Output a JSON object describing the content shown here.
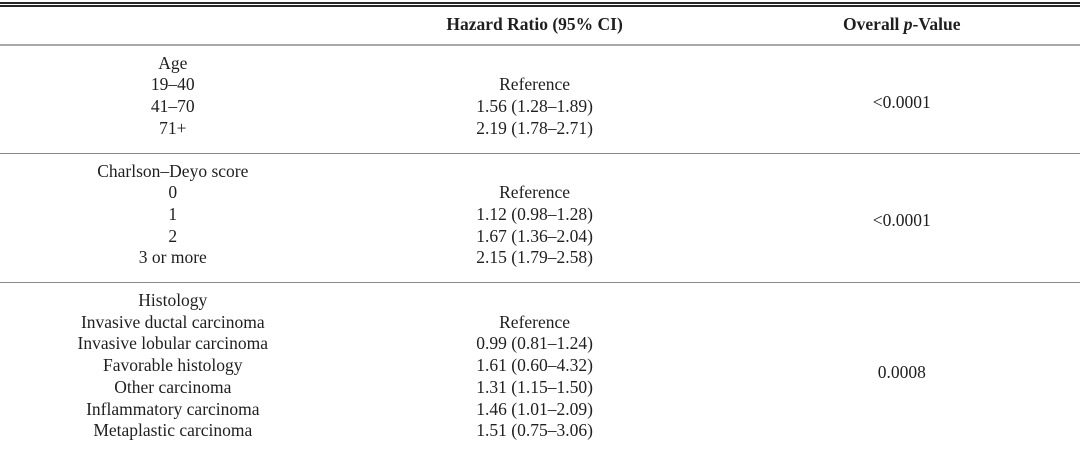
{
  "page": {
    "background": "#ffffff",
    "text_color": "#1f1f1f",
    "rule_heavy_color": "#262626",
    "rule_light_color": "#a9a9a9"
  },
  "table": {
    "header": {
      "col1": "",
      "col2": "Hazard Ratio (95% CI)",
      "col3_prefix": "Overall ",
      "col3_italic": "p",
      "col3_suffix": "-Value"
    },
    "sections": [
      {
        "label": "Age",
        "p_value": "<0.0001",
        "rows": [
          {
            "category": "19–40",
            "hazard_ratio": "Reference"
          },
          {
            "category": "41–70",
            "hazard_ratio": "1.56 (1.28–1.89)"
          },
          {
            "category": "71+",
            "hazard_ratio": "2.19 (1.78–2.71)"
          }
        ]
      },
      {
        "label": "Charlson–Deyo score",
        "p_value": "<0.0001",
        "rows": [
          {
            "category": "0",
            "hazard_ratio": "Reference"
          },
          {
            "category": "1",
            "hazard_ratio": "1.12 (0.98–1.28)"
          },
          {
            "category": "2",
            "hazard_ratio": "1.67 (1.36–2.04)"
          },
          {
            "category": "3 or more",
            "hazard_ratio": "2.15 (1.79–2.58)"
          }
        ]
      },
      {
        "label": "Histology",
        "p_value": "0.0008",
        "rows": [
          {
            "category": "Invasive ductal carcinoma",
            "hazard_ratio": "Reference"
          },
          {
            "category": "Invasive lobular carcinoma",
            "hazard_ratio": "0.99 (0.81–1.24)"
          },
          {
            "category": "Favorable histology",
            "hazard_ratio": "1.61 (0.60–4.32)"
          },
          {
            "category": "Other carcinoma",
            "hazard_ratio": "1.31 (1.15–1.50)"
          },
          {
            "category": "Inflammatory carcinoma",
            "hazard_ratio": "1.46 (1.01–2.09)"
          },
          {
            "category": "Metaplastic carcinoma",
            "hazard_ratio": "1.51 (0.75–3.06)"
          }
        ]
      }
    ]
  }
}
